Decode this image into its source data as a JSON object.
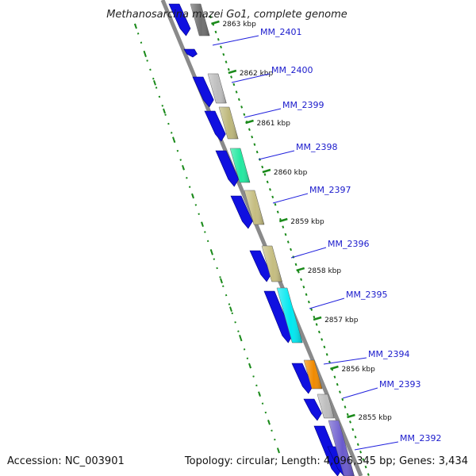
{
  "title": "Methanosarcina mazei Go1, complete genome",
  "footer": {
    "accession": "Accession: NC_003901",
    "summary": "Topology: circular; Length: 4,096,345 bp; Genes: 3,434"
  },
  "kbp_ticks": [
    "2863 kbp",
    "2862 kbp",
    "2861 kbp",
    "2860 kbp",
    "2859 kbp",
    "2858 kbp",
    "2857 kbp",
    "2856 kbp",
    "2855 kbp"
  ],
  "genes": [
    {
      "label": "MM_2401",
      "color": "#6e6e6e"
    },
    {
      "label": "MM_2400",
      "color": "#bdbdbd"
    },
    {
      "label": "MM_2399",
      "color": "#bdb77a"
    },
    {
      "label": "MM_2398",
      "color": "#22e8a0"
    },
    {
      "label": "MM_2397",
      "color": "#c5bd80"
    },
    {
      "label": "MM_2396",
      "color": "#c5bd80"
    },
    {
      "label": "MM_2395",
      "color": "#00e8f0"
    },
    {
      "label": "MM_2394",
      "color": "#f08a00"
    },
    {
      "label": "MM_2393",
      "color": "#bdbdbd"
    },
    {
      "label": "MM_2392",
      "color": "#6a5acd"
    }
  ],
  "colors": {
    "backbone": "#8a8a8a",
    "cds": "#1010e0",
    "gc_skew": "#1a8a1a",
    "tick": "#1a8a1a",
    "label_line": "#2020dd"
  }
}
